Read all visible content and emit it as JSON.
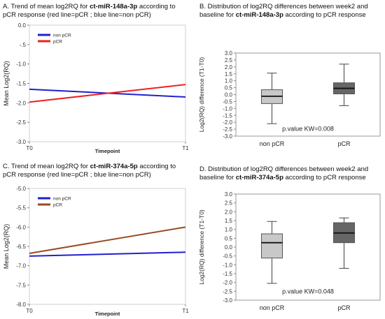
{
  "panels": {
    "A": {
      "title_pre": "A. Trend of mean log2RQ for ",
      "title_bold": "ct-miR-148a-3p",
      "title_post": " according to pCR response (red line=pCR ; blue line=non pCR)"
    },
    "B": {
      "title_pre": "B. Distribution of log2RQ differences between week2 and baseline for ",
      "title_bold": "ct-miR-148a-3p",
      "title_post": " according to pCR response"
    },
    "C": {
      "title_pre": "C. Trend of mean log2RQ for ",
      "title_bold": "ct-miR-374a-5p",
      "title_post": " according to pCR response (red line=pCR ; blue line=non pCR)"
    },
    "D": {
      "title_pre": "D. Distribution of  log2RQ differences between week2 and baseline for ",
      "title_bold": "ct-miR-374a-5p",
      "title_post": " according to pCR response"
    }
  },
  "chart_data": [
    {
      "id": "A",
      "type": "line",
      "xlabel": "Timepoint",
      "ylabel": "Mean Log2(RQ)",
      "x": [
        "T0",
        "T1"
      ],
      "ylim": [
        -3.0,
        0.0
      ],
      "yticks": [
        "0.0",
        "-.5",
        "-1.0",
        "-1.5",
        "-2.0",
        "-2.5",
        "-3.0"
      ],
      "legend_position": "top-left",
      "series": [
        {
          "name": "non pCR",
          "values": [
            -1.65,
            -1.85
          ],
          "color": "#2020d0"
        },
        {
          "name": "pCR",
          "values": [
            -1.98,
            -1.53
          ],
          "color": "#ee2020"
        }
      ]
    },
    {
      "id": "B",
      "type": "box",
      "ylabel": "Log2(RQ) difference (T1-T0)",
      "categories": [
        "non pCR",
        "pCR"
      ],
      "ylim": [
        -3.0,
        3.0
      ],
      "yticks": [
        "3.0",
        "2.5",
        "2.0",
        "1.5",
        "1.0",
        "0.5",
        "0.0",
        "-0.5",
        "-1.0",
        "-1.5",
        "-2.0",
        "-2.5",
        "-3.0"
      ],
      "annotation": "p.value KW=0.008",
      "boxes": [
        {
          "min": -2.1,
          "q1": -0.65,
          "median": -0.12,
          "q3": 0.35,
          "max": 1.55,
          "color": "#c8c8c8"
        },
        {
          "min": -0.8,
          "q1": 0.05,
          "median": 0.45,
          "q3": 0.85,
          "max": 2.2,
          "color": "#666666"
        }
      ]
    },
    {
      "id": "C",
      "type": "line",
      "xlabel": "Timepoint",
      "ylabel": "Mean Log2(RQ)",
      "x": [
        "T0",
        "T1"
      ],
      "ylim": [
        -8.0,
        -5.0
      ],
      "yticks": [
        "-5.0",
        "-5.5",
        "-6.0",
        "-6.5",
        "-7.0",
        "-7.5",
        "-8.0"
      ],
      "legend_position": "top-left",
      "series": [
        {
          "name": "non pCR",
          "values": [
            -6.75,
            -6.65
          ],
          "color": "#2020d0"
        },
        {
          "name": "pCR",
          "values": [
            -6.68,
            -6.0
          ],
          "color": "#9a4a22"
        }
      ]
    },
    {
      "id": "D",
      "type": "box",
      "ylabel": "Log2(RQ) difference (T1-T0)",
      "categories": [
        "non pCR",
        "pCR"
      ],
      "ylim": [
        -3.0,
        3.0
      ],
      "yticks": [
        "3.0",
        "2.5",
        "2.0",
        "1.5",
        "1.0",
        "0.5",
        "0.0",
        "-0.5",
        "-1.0",
        "-1.5",
        "-2.0",
        "-2.5",
        "-3.0"
      ],
      "annotation": "p.value KW=0.048",
      "boxes": [
        {
          "min": -2.05,
          "q1": -0.62,
          "median": 0.25,
          "q3": 0.75,
          "max": 1.45,
          "color": "#c8c8c8"
        },
        {
          "min": -1.2,
          "q1": 0.25,
          "median": 0.8,
          "q3": 1.38,
          "max": 1.65,
          "color": "#666666"
        }
      ]
    }
  ]
}
